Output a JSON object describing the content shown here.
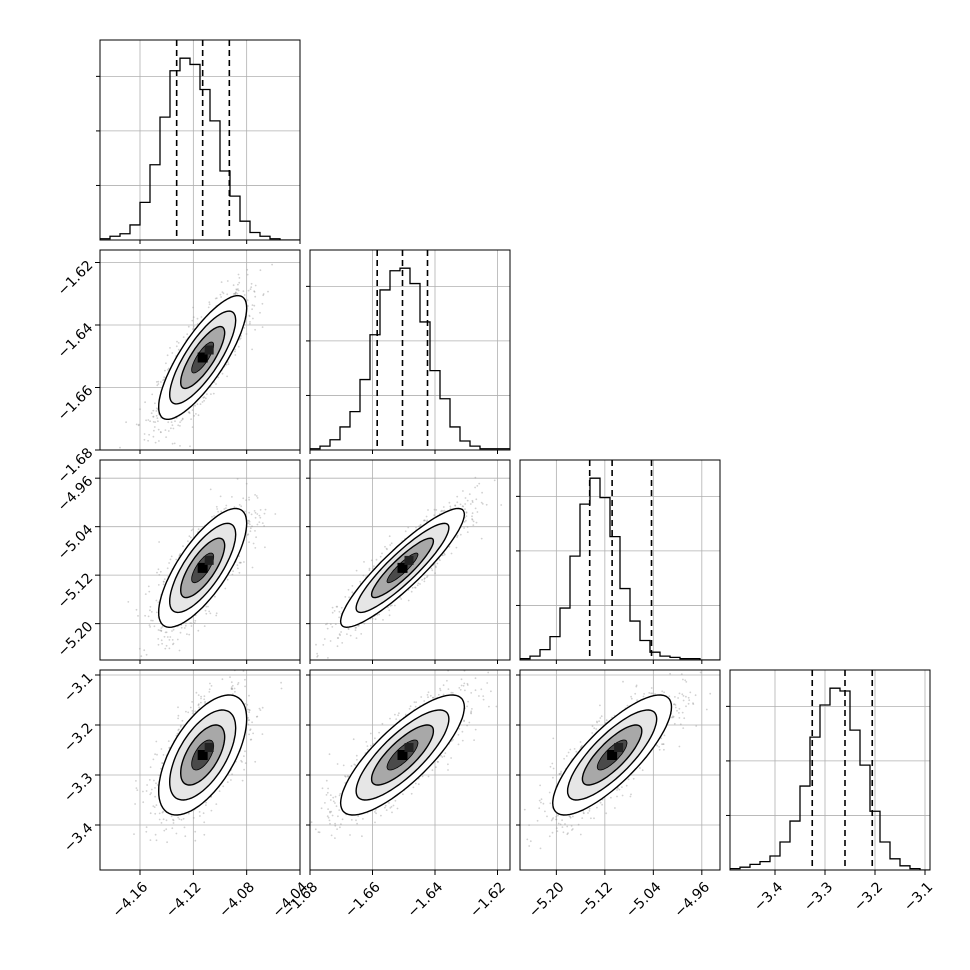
{
  "chart_data": {
    "type": "corner",
    "parameters": 4,
    "colors": {
      "axes": "#000000",
      "grid": "#b0b0b0",
      "scatter": "#9a9a9a",
      "contour": "#000000"
    },
    "grid": true,
    "ranges": [
      [
        -4.19,
        -4.04
      ],
      [
        -1.68,
        -1.616
      ],
      [
        -5.26,
        -4.93
      ],
      [
        -3.49,
        -3.09
      ]
    ],
    "ticks": [
      {
        "values": [
          -4.16,
          -4.12,
          -4.08,
          -4.04
        ],
        "labels": [
          "−4.16",
          "−4.12",
          "−4.08",
          "−4.04"
        ]
      },
      {
        "values": [
          -1.68,
          -1.66,
          -1.64,
          -1.62
        ],
        "labels": [
          "−1.68",
          "−1.66",
          "−1.64",
          "−1.62"
        ]
      },
      {
        "values": [
          -5.2,
          -5.12,
          -5.04,
          -4.96
        ],
        "labels": [
          "−5.20",
          "−5.12",
          "−5.04",
          "−4.96"
        ]
      },
      {
        "values": [
          -3.4,
          -3.3,
          -3.2,
          -3.1
        ],
        "labels": [
          "−3.4",
          "−3.3",
          "−3.2",
          "−3.1"
        ]
      }
    ],
    "marginals": [
      {
        "bin_start": -4.19,
        "bin_width": 0.0075,
        "counts": [
          1,
          3,
          5,
          12,
          30,
          60,
          98,
          135,
          145,
          140,
          120,
          95,
          55,
          35,
          15,
          6,
          3,
          1,
          0,
          0
        ],
        "quantiles": [
          -4.1325,
          -4.113,
          -4.093
        ]
      },
      {
        "bin_start": -1.68,
        "bin_width": 0.0032,
        "counts": [
          1,
          3,
          8,
          18,
          30,
          55,
          90,
          125,
          140,
          142,
          130,
          100,
          62,
          40,
          18,
          7,
          3,
          1,
          1,
          1
        ],
        "quantiles": [
          -1.6585,
          -1.6504,
          -1.6424
        ]
      },
      {
        "bin_start": -5.26,
        "bin_width": 0.0165,
        "counts": [
          1,
          3,
          8,
          18,
          40,
          80,
          120,
          140,
          125,
          95,
          55,
          30,
          15,
          6,
          3,
          2,
          1,
          1,
          0,
          0
        ],
        "quantiles": [
          -5.145,
          -5.108,
          -5.043
        ]
      },
      {
        "bin_start": -3.49,
        "bin_width": 0.02,
        "counts": [
          1,
          2,
          4,
          6,
          10,
          20,
          35,
          60,
          95,
          118,
          130,
          128,
          100,
          75,
          42,
          20,
          8,
          3,
          1,
          0
        ],
        "quantiles": [
          -3.3255,
          -3.26,
          -3.2055
        ]
      }
    ],
    "joint": [
      {
        "x": 0,
        "y": 1,
        "mean": [
          -4.113,
          -1.6504
        ],
        "sd": [
          0.0165,
          0.0099
        ],
        "rho": 0.8
      },
      {
        "x": 0,
        "y": 2,
        "mean": [
          -4.113,
          -5.108
        ],
        "sd": [
          0.0165,
          0.049
        ],
        "rho": 0.75
      },
      {
        "x": 1,
        "y": 2,
        "mean": [
          -1.6504,
          -5.108
        ],
        "sd": [
          0.0099,
          0.049
        ],
        "rho": 0.9
      },
      {
        "x": 0,
        "y": 3,
        "mean": [
          -4.113,
          -3.26
        ],
        "sd": [
          0.0165,
          0.06
        ],
        "rho": 0.6
      },
      {
        "x": 1,
        "y": 3,
        "mean": [
          -1.6504,
          -3.26
        ],
        "sd": [
          0.0099,
          0.06
        ],
        "rho": 0.8
      },
      {
        "x": 2,
        "y": 3,
        "mean": [
          -5.108,
          -3.26
        ],
        "sd": [
          0.049,
          0.06
        ],
        "rho": 0.8
      }
    ],
    "contour_levels_sigma": [
      0.5,
      1.0,
      1.5,
      2.0
    ]
  }
}
